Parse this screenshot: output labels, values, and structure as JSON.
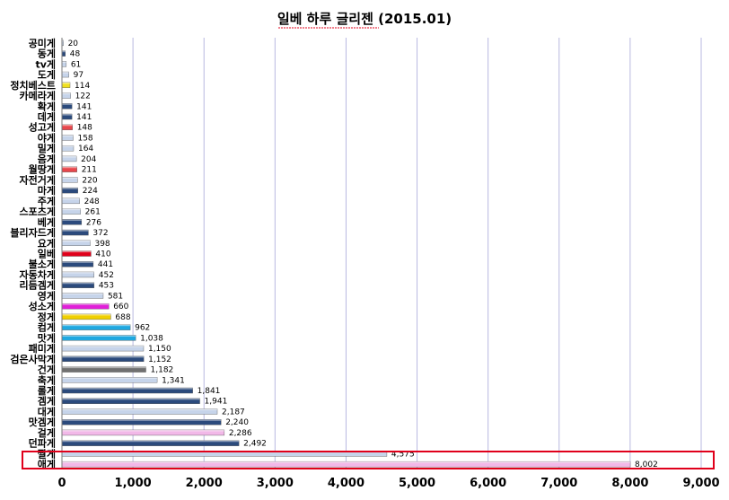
{
  "chart_data": {
    "type": "bar",
    "orientation": "horizontal",
    "title": "일베 하루 글리젠 (2015.01)",
    "xlabel": "",
    "ylabel": "",
    "xlim": [
      0,
      9000
    ],
    "xticks": [
      "0",
      "1,000",
      "2,000",
      "3,000",
      "4,000",
      "5,000",
      "6,000",
      "7,000",
      "8,000",
      "9,000"
    ],
    "grid": "vertical",
    "legend": "none",
    "highlighted_category": "애게",
    "highlight_color": "#e0001b",
    "categories": [
      "공미게",
      "동게",
      "tv게",
      "도게",
      "정치베스트",
      "카메라게",
      "확게",
      "데게",
      "성고게",
      "야게",
      "밀게",
      "음게",
      "월땅게",
      "자전거게",
      "마게",
      "주게",
      "스포츠게",
      "베게",
      "블리자드게",
      "요게",
      "일베",
      "불소게",
      "자동차게",
      "리듬겜게",
      "영게",
      "성소게",
      "정게",
      "컴게",
      "맛게",
      "패미게",
      "검은사막게",
      "건게",
      "축게",
      "롤게",
      "겜게",
      "대게",
      "맛겜게",
      "걸게",
      "던파게",
      "짤게",
      "애게"
    ],
    "values": [
      20,
      48,
      61,
      97,
      114,
      122,
      141,
      141,
      148,
      158,
      164,
      204,
      211,
      220,
      224,
      248,
      261,
      276,
      372,
      398,
      410,
      441,
      452,
      453,
      581,
      660,
      688,
      962,
      1038,
      1150,
      1152,
      1182,
      1341,
      1841,
      1941,
      2187,
      2240,
      2286,
      2492,
      4575,
      8002
    ],
    "value_labels": [
      "20",
      "48",
      "61",
      "97",
      "114",
      "122",
      "141",
      "141",
      "148",
      "158",
      "164",
      "204",
      "211",
      "220",
      "224",
      "248",
      "261",
      "276",
      "372",
      "398",
      "410",
      "441",
      "452",
      "453",
      "581",
      "660",
      "688",
      "962",
      "1,038",
      "1,150",
      "1,152",
      "1,182",
      "1,341",
      "1,841",
      "1,941",
      "2,187",
      "2,240",
      "2,286",
      "2,492",
      "4,575",
      "8,002"
    ],
    "colors": [
      "#c6d4ea",
      "#2b4a7c",
      "#c6d4ea",
      "#c6d4ea",
      "#f0e020",
      "#c6d4ea",
      "#2b4a7c",
      "#2b4a7c",
      "#e8474c",
      "#c6d4ea",
      "#c6d4ea",
      "#c6d4ea",
      "#e8474c",
      "#c6d4ea",
      "#2b4a7c",
      "#c6d4ea",
      "#c6d4ea",
      "#2b4a7c",
      "#2b4a7c",
      "#c6d4ea",
      "#e0001b",
      "#2b4a7c",
      "#c6d4ea",
      "#2b4a7c",
      "#c6d4ea",
      "#e020d8",
      "#f0d000",
      "#1fa8e0",
      "#1fa8e0",
      "#c6d4ea",
      "#2b4a7c",
      "#707070",
      "#c6d4ea",
      "#2b4a7c",
      "#2b4a7c",
      "#c6d4ea",
      "#2b4a7c",
      "#f2b8e8",
      "#2b4a7c",
      "#c6d4ea",
      "#f2b8e8"
    ]
  }
}
